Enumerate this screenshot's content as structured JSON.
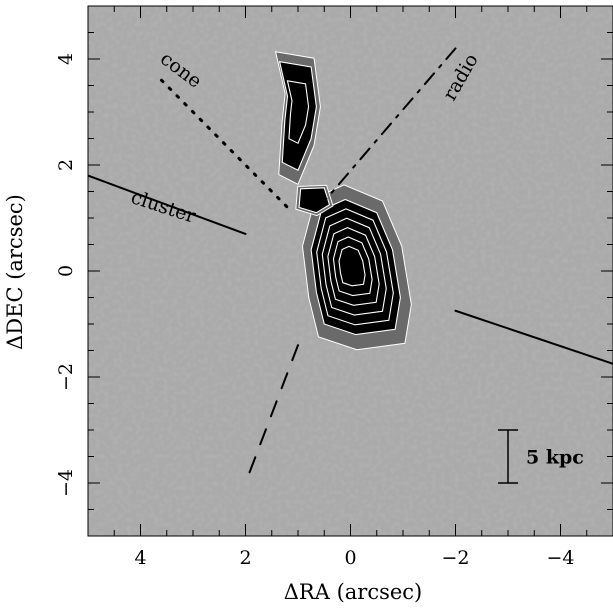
{
  "chart_data": {
    "type": "heatmap",
    "title": "",
    "xlabel": "ΔRA (arcsec)",
    "ylabel": "ΔDEC (arcsec)",
    "xlim": [
      5,
      -5
    ],
    "ylim": [
      -5,
      5
    ],
    "x_ticks": [
      4,
      2,
      0,
      -2,
      -4
    ],
    "x_tick_labels": [
      "4",
      "2",
      "0",
      "−2",
      "−4"
    ],
    "y_ticks": [
      4,
      2,
      0,
      -2,
      -4
    ],
    "y_tick_labels": [
      "4",
      "2",
      "0",
      "−2",
      "−4"
    ],
    "colormap": "grayscale (bright background, dark emission)",
    "emission_regions": [
      {
        "name": "nucleus",
        "center": [
          0.0,
          0.1
        ],
        "contour_levels": 7
      },
      {
        "name": "northern arc",
        "center": [
          1.0,
          3.1
        ],
        "contour_levels": 3
      },
      {
        "name": "knot",
        "center": [
          0.7,
          1.35
        ],
        "contour_levels": 2
      }
    ],
    "lines": [
      {
        "label": "cone",
        "style": "dotted",
        "points": [
          [
            3.6,
            3.6
          ],
          [
            1.2,
            1.2
          ]
        ]
      },
      {
        "label": "radio",
        "style": "dash-dot",
        "points": [
          [
            -2.0,
            4.2
          ],
          [
            0.6,
            1.2
          ]
        ]
      },
      {
        "label": "",
        "style": "dashed",
        "points": [
          [
            1.0,
            -1.4
          ],
          [
            2.0,
            -4.0
          ]
        ]
      },
      {
        "label": "cluster",
        "style": "solid",
        "points": [
          [
            5.0,
            1.8
          ],
          [
            2.0,
            0.7
          ]
        ]
      },
      {
        "label": "",
        "style": "solid",
        "points": [
          [
            -2.0,
            -0.75
          ],
          [
            -5.0,
            -1.75
          ]
        ]
      }
    ],
    "annotations": [
      {
        "text": "cone",
        "x": 3.3,
        "y": 3.7,
        "rotation": 37
      },
      {
        "text": "radio",
        "x": -2.2,
        "y": 3.6,
        "rotation": -60
      },
      {
        "text": "cluster",
        "x": 3.6,
        "y": 1.1,
        "rotation": 18
      }
    ],
    "scale_bar": {
      "label": "5 kpc",
      "x": -3.0,
      "y_range": [
        -3.0,
        -4.0
      ]
    }
  }
}
